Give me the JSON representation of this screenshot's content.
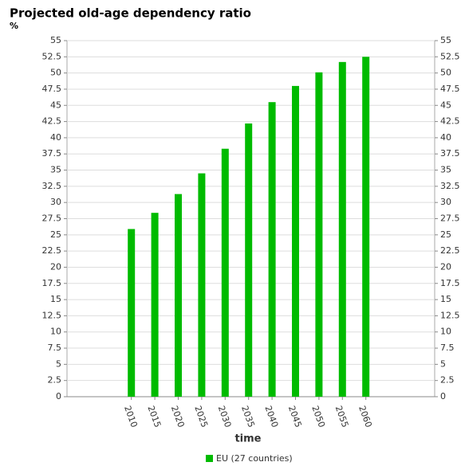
{
  "chart_data": {
    "type": "bar",
    "title": "Projected old-age dependency ratio",
    "y_label": "%",
    "x_label": "time",
    "categories": [
      "2010",
      "2015",
      "2020",
      "2025",
      "2030",
      "2035",
      "2040",
      "2045",
      "2050",
      "2055",
      "2060"
    ],
    "series": [
      {
        "name": "EU (27 countries)",
        "color": "#00bb00",
        "values": [
          25.9,
          28.4,
          31.3,
          34.5,
          38.3,
          42.2,
          45.5,
          48.0,
          50.1,
          51.7,
          52.5
        ]
      }
    ],
    "ylim": [
      0,
      55
    ],
    "yticks": [
      0,
      2.5,
      5,
      7.5,
      10,
      12.5,
      15,
      17.5,
      20,
      22.5,
      25,
      27.5,
      30,
      32.5,
      35,
      37.5,
      40,
      42.5,
      45,
      47.5,
      50,
      52.5,
      55
    ],
    "grid": true
  }
}
